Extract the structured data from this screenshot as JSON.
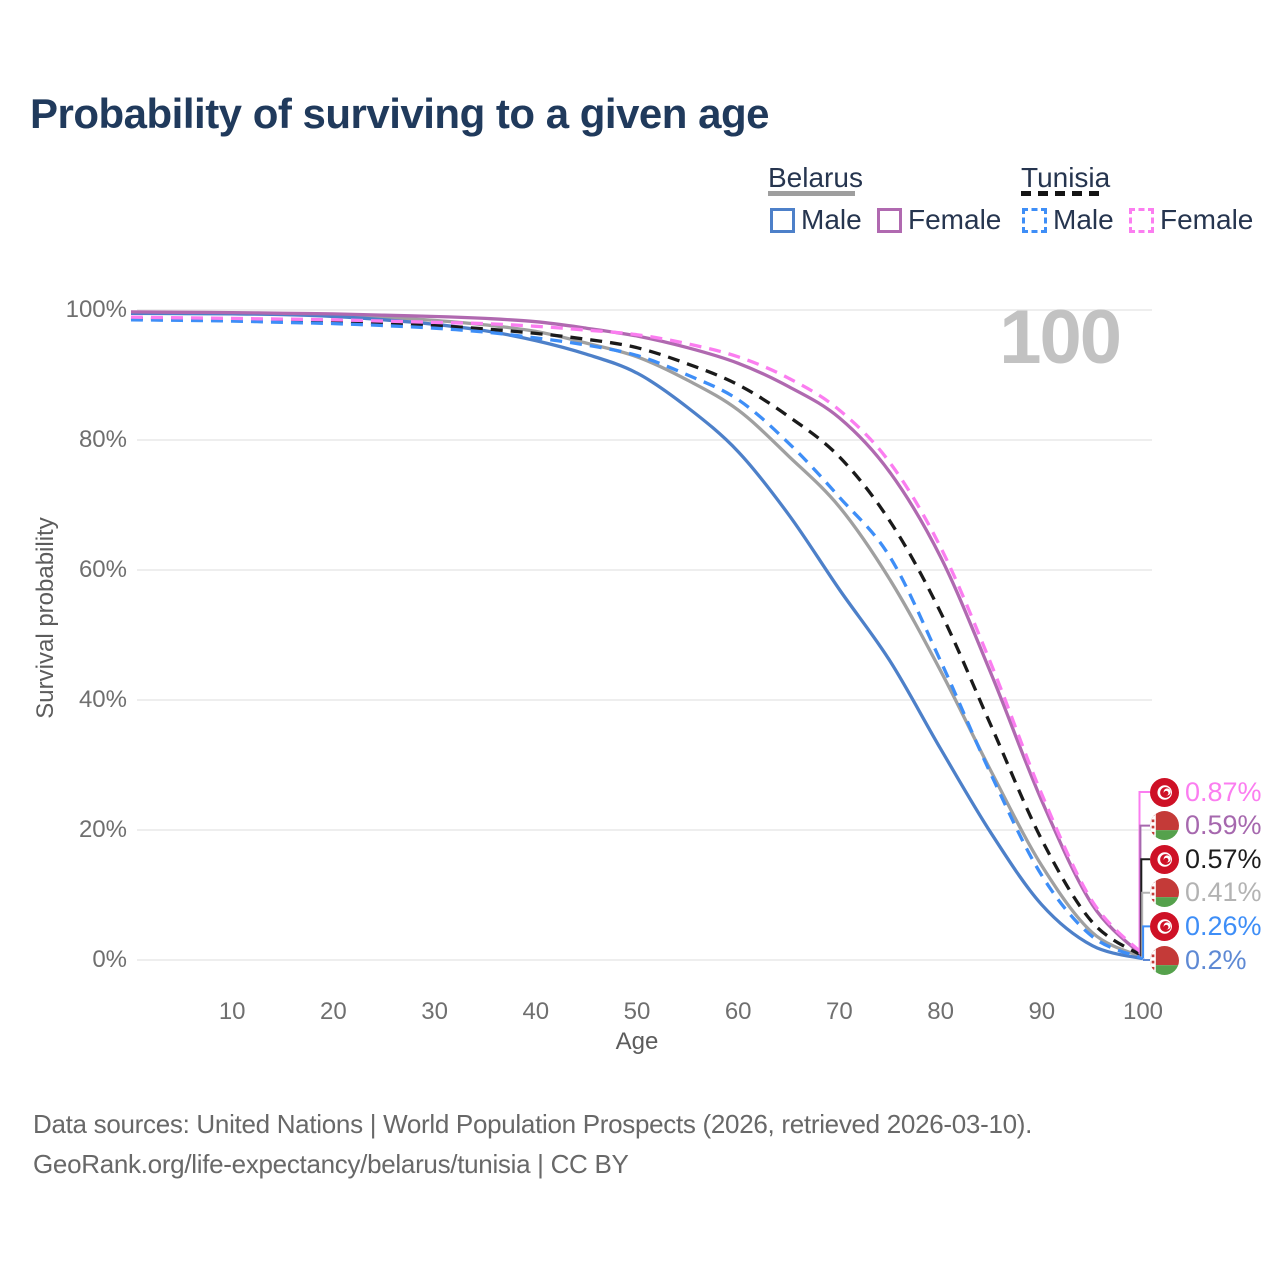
{
  "title": "Probability of surviving to a given age",
  "watermark": "100",
  "legend": {
    "groups": [
      {
        "name": "Belarus",
        "key_style": "solid",
        "key_color": "#9e9e9e",
        "items": [
          {
            "label": "Male",
            "color": "#4d80c9",
            "style": "solid"
          },
          {
            "label": "Female",
            "color": "#b069b0",
            "style": "solid"
          }
        ]
      },
      {
        "name": "Tunisia",
        "key_style": "dashed",
        "key_color": "#141414",
        "items": [
          {
            "label": "Male",
            "color": "#3e8ef7",
            "style": "dashed"
          },
          {
            "label": "Female",
            "color": "#fb7df0",
            "style": "dashed"
          }
        ]
      }
    ]
  },
  "y_axis": {
    "title": "Survival probability",
    "ticks": [
      {
        "label": "0%",
        "value": 0
      },
      {
        "label": "20%",
        "value": 20
      },
      {
        "label": "40%",
        "value": 40
      },
      {
        "label": "60%",
        "value": 60
      },
      {
        "label": "80%",
        "value": 80
      },
      {
        "label": "100%",
        "value": 100
      }
    ]
  },
  "x_axis": {
    "title": "Age",
    "ticks": [
      {
        "label": "10",
        "value": 10
      },
      {
        "label": "20",
        "value": 20
      },
      {
        "label": "30",
        "value": 30
      },
      {
        "label": "40",
        "value": 40
      },
      {
        "label": "50",
        "value": 50
      },
      {
        "label": "60",
        "value": 60
      },
      {
        "label": "70",
        "value": 70
      },
      {
        "label": "80",
        "value": 80
      },
      {
        "label": "90",
        "value": 90
      },
      {
        "label": "100",
        "value": 100
      }
    ]
  },
  "end_labels": [
    {
      "flag": "tunisia",
      "value": "0.87%",
      "color": "#fb7df0"
    },
    {
      "flag": "belarus",
      "value": "0.59%",
      "color": "#a668ae"
    },
    {
      "flag": "tunisia",
      "value": "0.57%",
      "color": "#1d1d1d"
    },
    {
      "flag": "belarus",
      "value": "0.41%",
      "color": "#b3b3b3"
    },
    {
      "flag": "tunisia",
      "value": "0.26%",
      "color": "#3e8ef7"
    },
    {
      "flag": "belarus",
      "value": "0.2%",
      "color": "#5e89d4"
    }
  ],
  "footer": {
    "line1": "Data sources: United Nations | World Population Prospects (2026, retrieved 2026-03-10).",
    "line2": "GeoRank.org/life-expectancy/belarus/tunisia | CC BY"
  },
  "chart_data": {
    "type": "line",
    "title": "Probability of surviving to a given age",
    "xlabel": "Age",
    "ylabel": "Survival probability",
    "xlim": [
      0,
      100
    ],
    "ylim": [
      0,
      100
    ],
    "grid": "horizontal",
    "legend_position": "top-right",
    "x": [
      0,
      5,
      10,
      15,
      20,
      25,
      30,
      35,
      40,
      45,
      50,
      55,
      60,
      65,
      70,
      75,
      80,
      85,
      90,
      95,
      100
    ],
    "series": [
      {
        "name": "Belarus",
        "slug": "belarus-both",
        "color": "#a0a0a0",
        "dash": "solid",
        "end_label": "0.41%",
        "values": [
          99.6,
          99.55,
          99.5,
          99.4,
          99.2,
          98.9,
          98.4,
          97.7,
          96.7,
          94.9,
          92.8,
          89.2,
          84.6,
          77.5,
          69.7,
          58.5,
          44.5,
          29.0,
          14.5,
          4.2,
          0.41
        ]
      },
      {
        "name": "Belarus Male",
        "slug": "belarus-male",
        "color": "#4d80c9",
        "dash": "solid",
        "end_label": "0.2%",
        "values": [
          99.5,
          99.45,
          99.4,
          99.3,
          99.0,
          98.5,
          97.8,
          96.8,
          95.3,
          93.2,
          90.3,
          85.0,
          78.2,
          68.5,
          57.0,
          46.0,
          32.5,
          19.5,
          8.5,
          2.2,
          0.2
        ]
      },
      {
        "name": "Belarus Female",
        "slug": "belarus-female",
        "color": "#b069b0",
        "dash": "solid",
        "end_label": "0.59%",
        "values": [
          99.7,
          99.65,
          99.6,
          99.5,
          99.4,
          99.2,
          99.0,
          98.7,
          98.2,
          97.2,
          96.0,
          94.2,
          91.8,
          88.2,
          83.4,
          75.0,
          62.0,
          44.0,
          24.5,
          8.5,
          0.59
        ]
      },
      {
        "name": "Tunisia",
        "slug": "tunisia-both",
        "color": "#1a1a1a",
        "dash": "dashed",
        "end_label": "0.57%",
        "values": [
          98.7,
          98.6,
          98.5,
          98.4,
          98.2,
          97.9,
          97.6,
          97.1,
          96.4,
          95.5,
          94.2,
          91.7,
          88.5,
          83.6,
          77.4,
          67.5,
          53.5,
          36.0,
          18.5,
          5.8,
          0.57
        ]
      },
      {
        "name": "Tunisia Male",
        "slug": "tunisia-male",
        "color": "#3e8ef7",
        "dash": "dashed",
        "end_label": "0.26%",
        "values": [
          98.5,
          98.4,
          98.3,
          98.1,
          97.9,
          97.6,
          97.2,
          96.6,
          95.7,
          94.6,
          93.0,
          90.0,
          86.2,
          79.5,
          71.2,
          62.0,
          46.0,
          28.5,
          13.0,
          3.6,
          0.26
        ]
      },
      {
        "name": "Tunisia Female",
        "slug": "tunisia-female",
        "color": "#fb7df0",
        "dash": "dashed",
        "end_label": "0.87%",
        "values": [
          98.9,
          98.8,
          98.7,
          98.6,
          98.5,
          98.3,
          98.1,
          97.9,
          97.5,
          96.9,
          96.2,
          94.8,
          92.8,
          89.5,
          84.6,
          76.5,
          63.5,
          45.5,
          25.5,
          9.0,
          0.87
        ]
      }
    ]
  }
}
